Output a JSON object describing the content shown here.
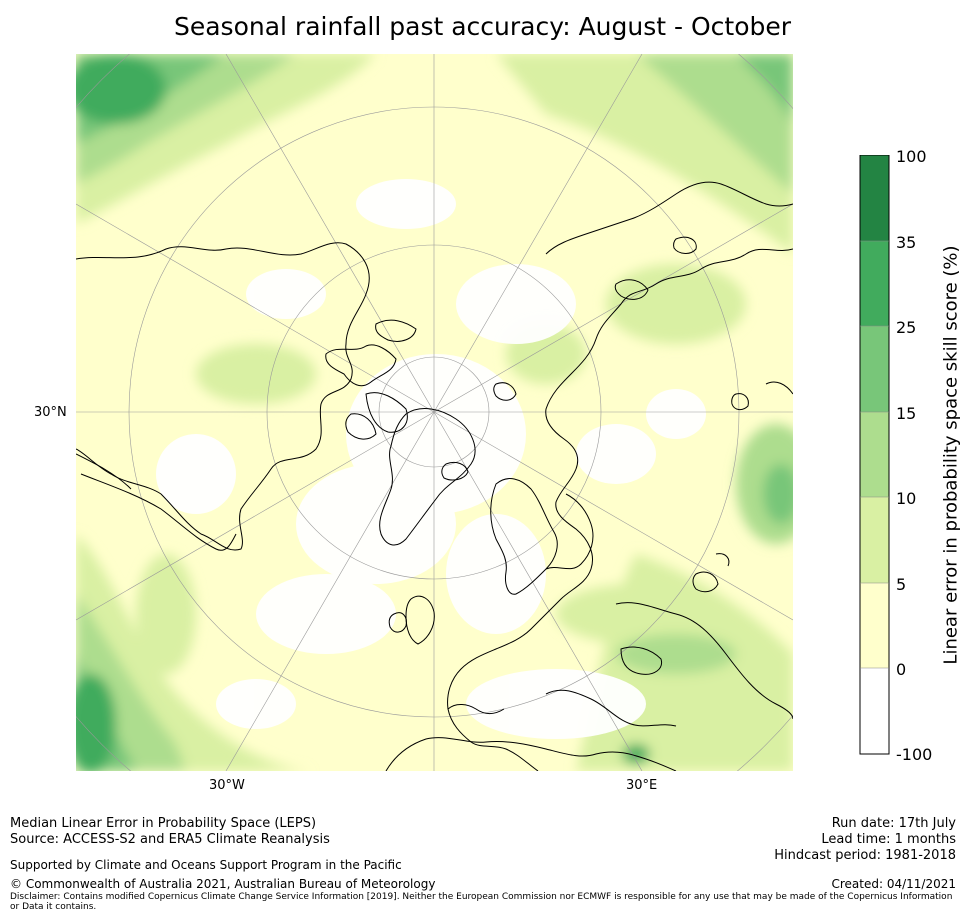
{
  "title": "Seasonal rainfall past accuracy: August - October",
  "map": {
    "lat_label": "30°N",
    "lon_labels": [
      "30°W",
      "30°E"
    ],
    "colors": {
      "white": "#ffffff",
      "light_yellow": "#ffffcc",
      "pale_green": "#d9f0a3",
      "light_green": "#addd8e",
      "mid_green": "#78c679",
      "green": "#41ab5d",
      "dark_green": "#238443",
      "coastline": "#000000",
      "graticule": "#9a9a9a"
    }
  },
  "colorbar": {
    "title": "Linear error in probability space skill score (%)",
    "ticks": [
      "100",
      "35",
      "25",
      "15",
      "10",
      "5",
      "0",
      "-100"
    ],
    "colors": [
      "#238443",
      "#41ab5d",
      "#78c679",
      "#addd8e",
      "#d9f0a3",
      "#ffffcc",
      "#ffffff"
    ]
  },
  "footer": {
    "line1": "Median Linear Error in Probability Space (LEPS)",
    "line2": "Source: ACCESS-S2 and ERA5 Climate Reanalysis",
    "support": "Supported by Climate and Oceans Support Program in the Pacific",
    "copyright": "© Commonwealth of Australia 2021, Australian Bureau of Meteorology",
    "disclaimer": "Disclaimer: Contains modified Copernicus Climate Change Service Information [2019]. Neither the European Commission nor ECMWF is responsible for any use that may be made of the Copernicus Information or Data it contains.",
    "run_date": "Run date: 17th July",
    "lead_time": "Lead time: 1 months",
    "hindcast": "Hindcast period: 1981-2018",
    "created": "Created: 04/11/2021"
  }
}
